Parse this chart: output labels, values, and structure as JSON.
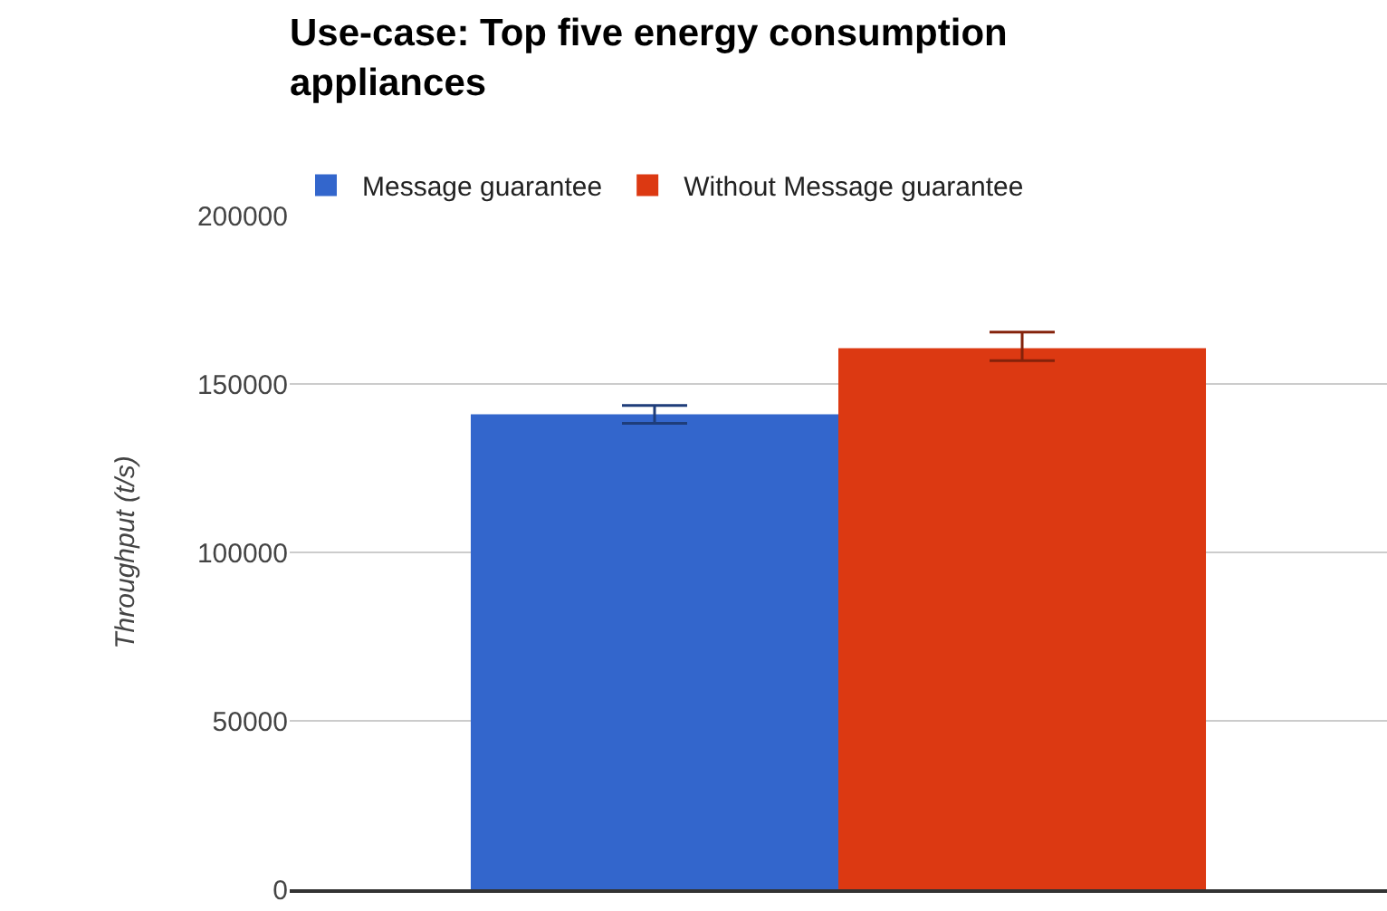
{
  "chart_data": {
    "type": "bar",
    "title": "Use-case: Top five energy consumption appliances",
    "ylabel": "Throughput (t/s)",
    "categories": [
      null
    ],
    "series": [
      {
        "name": "Message guarantee",
        "color": "#3366cc",
        "values": [
          141000
        ],
        "errors": [
          [
            138300,
            143600
          ]
        ]
      },
      {
        "name": "Without Message guarantee",
        "color": "#dc3912",
        "values": [
          160600
        ],
        "errors": [
          [
            156900,
            165400
          ]
        ]
      }
    ],
    "ylim": [
      0,
      200000
    ],
    "yticks": [
      0,
      50000,
      100000,
      150000,
      200000
    ],
    "grid": "y",
    "legend": "top left"
  }
}
